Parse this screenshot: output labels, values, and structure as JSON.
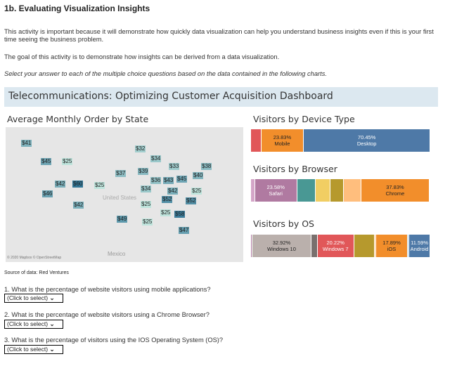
{
  "header": {
    "title": "1b. Evaluating Visualization Insights"
  },
  "intro": {
    "p1": "This activity is important because it will demonstrate how quickly data visualization can help you understand business insights even if this is your first time seeing the business problem.",
    "p2": "The goal of this activity is to demonstrate how insights can be derived from a data visualization.",
    "p3": "Select your answer to each of the multiple choice questions based on the data contained in the following charts."
  },
  "dashboard": {
    "title": "Telecommunications: Optimizing Customer Acquisition Dashboard"
  },
  "chart_data": [
    {
      "type": "map",
      "title": "Average Monthly Order by State",
      "country_label": "United States",
      "neighbor_label": "Mexico",
      "attribution": "© 2020 Mapbox © OpenStreetMap",
      "values": [
        "$41",
        "$45",
        "$25",
        "$42",
        "$60",
        "$25",
        "$46",
        "$42",
        "$32",
        "$34",
        "$33",
        "$39",
        "$37",
        "$36",
        "$43",
        "$45",
        "$40",
        "$38",
        "$34",
        "$42",
        "$25",
        "$52",
        "$52",
        "$25",
        "$25",
        "$58",
        "$25",
        "$47",
        "$49"
      ]
    },
    {
      "type": "bar",
      "title": "Visitors by Device Type",
      "stacked": true,
      "series": [
        {
          "value": 5.7,
          "color": "#e15759",
          "label": ""
        },
        {
          "name": "Mobile",
          "value": 23.83,
          "color": "#f28e2b",
          "label": "23.83%"
        },
        {
          "name": "Desktop",
          "value": 70.45,
          "color": "#4e79a7",
          "label": "70.45%"
        }
      ]
    },
    {
      "type": "bar",
      "title": "Visitors by Browser",
      "stacked": true,
      "series": [
        {
          "value": 2.2,
          "color": "#d4a6c8",
          "label": ""
        },
        {
          "name": "Safari",
          "value": 23.58,
          "color": "#b07aa1",
          "label": "23.58%"
        },
        {
          "value": 10.5,
          "color": "#499894",
          "label": ""
        },
        {
          "value": 8.2,
          "color": "#f1ce63",
          "label": ""
        },
        {
          "value": 7.2,
          "color": "#b6992d",
          "label": ""
        },
        {
          "value": 10.0,
          "color": "#ffbe7d",
          "label": ""
        },
        {
          "name": "Chrome",
          "value": 37.83,
          "color": "#f28e2b",
          "label": "37.83%"
        },
        {
          "value": 0.5,
          "color": "#4e79a7",
          "label": ""
        }
      ]
    },
    {
      "type": "bar",
      "title": "Visitors by OS",
      "stacked": true,
      "series": [
        {
          "value": 0.7,
          "color": "#b07aa1",
          "label": ""
        },
        {
          "name": "Windows 10",
          "value": 32.92,
          "color": "#bab0ac",
          "label": "32.92%"
        },
        {
          "value": 3.4,
          "color": "#79706e",
          "label": ""
        },
        {
          "name": "Windows 7",
          "value": 20.22,
          "color": "#e15759",
          "label": "20.22%"
        },
        {
          "value": 11.6,
          "color": "#b6992d",
          "label": ""
        },
        {
          "value": 0.5,
          "color": "#ffbe7d",
          "label": ""
        },
        {
          "name": "iOS",
          "value": 17.89,
          "color": "#f28e2b",
          "label": "17.89%"
        },
        {
          "value": 0.7,
          "color": "#a0cbe8",
          "label": ""
        },
        {
          "name": "Android",
          "value": 11.59,
          "color": "#4e79a7",
          "label": "11.59%"
        }
      ]
    }
  ],
  "source": "Source of data: Red Ventures",
  "questions": [
    {
      "text": "1. What is the percentage of website visitors using mobile applications?",
      "select": "(Click to select)"
    },
    {
      "text": "2. What is the percentage of  website visitors using a Chrome Browser?",
      "select": "(Click to select)"
    },
    {
      "text": "3. What is the percentage of visitors using the IOS Operating System (OS)?",
      "select": "(Click to select)"
    }
  ]
}
